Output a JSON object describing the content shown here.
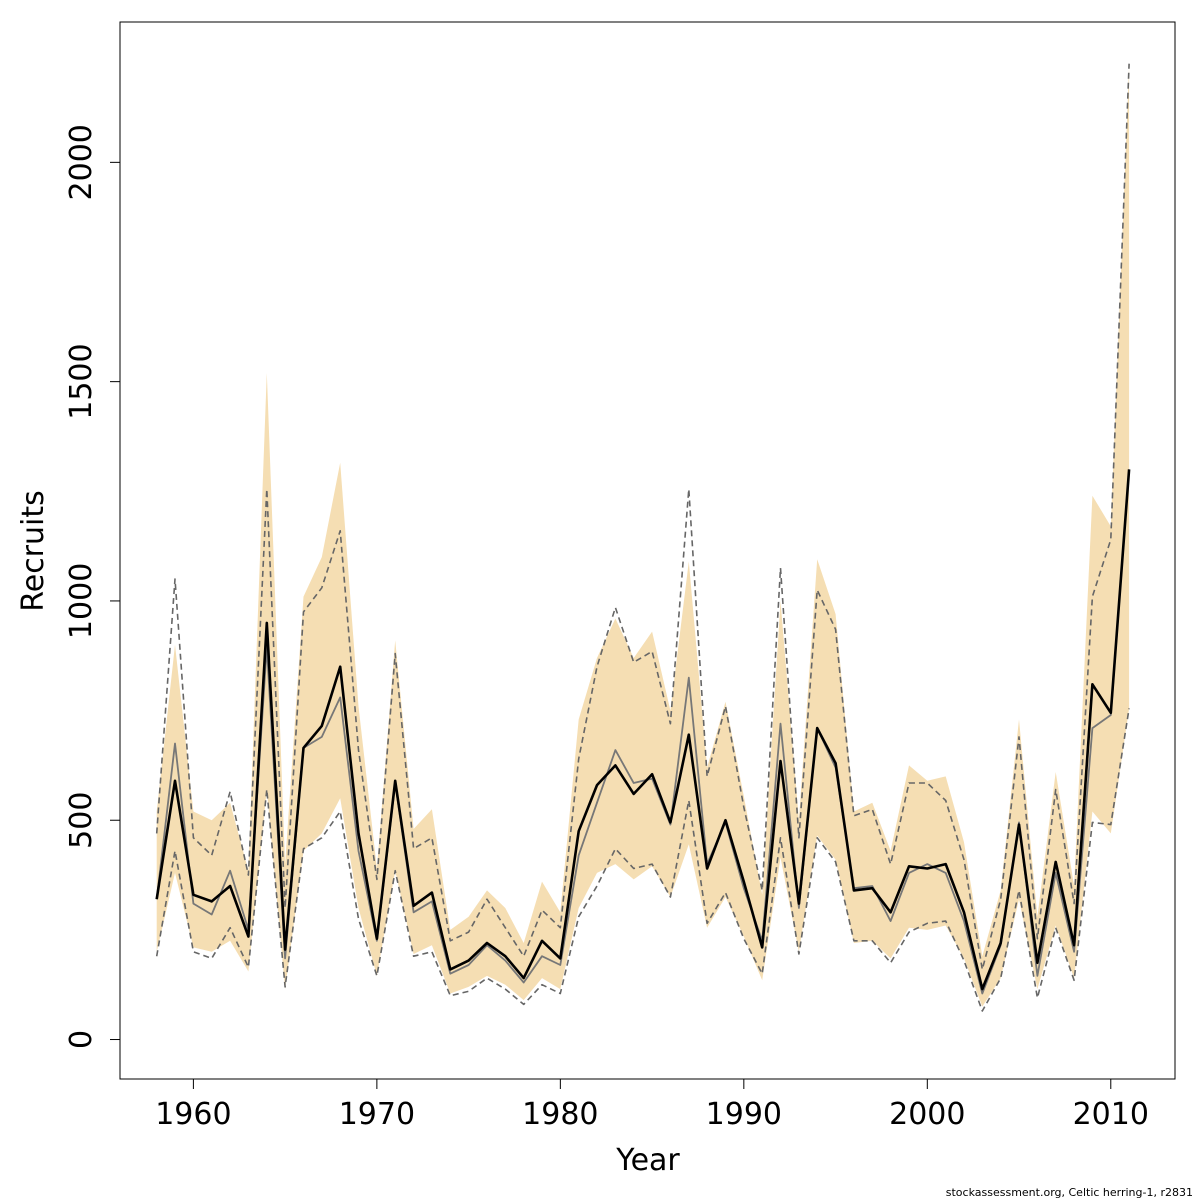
{
  "chart_data": {
    "type": "line",
    "title": "",
    "xlabel": "Year",
    "ylabel": "Recruits",
    "xlim": [
      1956,
      2013.5
    ],
    "ylim": [
      -90,
      2320
    ],
    "xticks": [
      1960,
      1970,
      1980,
      1990,
      2000,
      2010
    ],
    "yticks": [
      0,
      500,
      1000,
      1500,
      2000
    ],
    "grid": false,
    "legend": "none",
    "colors": {
      "band": "#f5deb3",
      "estimate": "#000000",
      "alt_estimate": "#777777",
      "alt_bounds": "#666666",
      "axis": "#000000"
    },
    "x": [
      1958,
      1959,
      1960,
      1961,
      1962,
      1963,
      1964,
      1965,
      1966,
      1967,
      1968,
      1969,
      1970,
      1971,
      1972,
      1973,
      1974,
      1975,
      1976,
      1977,
      1978,
      1979,
      1980,
      1981,
      1982,
      1983,
      1984,
      1985,
      1986,
      1987,
      1988,
      1989,
      1990,
      1991,
      1992,
      1993,
      1994,
      1995,
      1996,
      1997,
      1998,
      1999,
      2000,
      2001,
      2002,
      2003,
      2004,
      2005,
      2006,
      2007,
      2008,
      2009,
      2010,
      2011
    ],
    "series": [
      {
        "role": "estimate",
        "values": [
          320,
          590,
          330,
          315,
          350,
          235,
          950,
          205,
          665,
          715,
          850,
          470,
          230,
          590,
          305,
          335,
          160,
          180,
          220,
          190,
          140,
          225,
          185,
          475,
          580,
          625,
          560,
          605,
          495,
          695,
          390,
          500,
          360,
          210,
          635,
          310,
          710,
          630,
          340,
          345,
          290,
          395,
          390,
          400,
          290,
          115,
          220,
          490,
          175,
          405,
          215,
          810,
          745,
          1300
        ]
      },
      {
        "role": "estimate_upper",
        "values": [
          520,
          900,
          520,
          500,
          540,
          385,
          1520,
          400,
          1010,
          1100,
          1315,
          760,
          390,
          910,
          480,
          525,
          250,
          280,
          340,
          300,
          220,
          360,
          290,
          730,
          870,
          960,
          870,
          930,
          750,
          1090,
          620,
          770,
          555,
          330,
          1000,
          500,
          1095,
          970,
          520,
          540,
          430,
          625,
          590,
          600,
          450,
          190,
          340,
          730,
          280,
          610,
          350,
          1240,
          1170,
          2220
        ]
      },
      {
        "role": "estimate_lower",
        "values": [
          200,
          380,
          210,
          200,
          225,
          155,
          570,
          115,
          430,
          470,
          550,
          300,
          145,
          385,
          195,
          215,
          105,
          120,
          145,
          125,
          90,
          140,
          115,
          300,
          380,
          400,
          365,
          395,
          325,
          445,
          255,
          325,
          235,
          135,
          415,
          200,
          465,
          410,
          220,
          225,
          185,
          255,
          250,
          260,
          185,
          75,
          140,
          320,
          115,
          260,
          140,
          520,
          470,
          755
        ]
      },
      {
        "role": "alt_estimate",
        "values": [
          320,
          675,
          310,
          285,
          385,
          250,
          895,
          185,
          665,
          690,
          780,
          430,
          225,
          585,
          290,
          315,
          150,
          170,
          215,
          180,
          130,
          190,
          170,
          420,
          540,
          660,
          585,
          595,
          490,
          825,
          400,
          495,
          345,
          225,
          720,
          300,
          710,
          620,
          345,
          350,
          270,
          380,
          400,
          380,
          270,
          105,
          215,
          495,
          145,
          380,
          200,
          710,
          740,
          1300
        ]
      },
      {
        "role": "alt_upper",
        "values": [
          470,
          1050,
          460,
          420,
          565,
          375,
          1255,
          300,
          975,
          1030,
          1160,
          660,
          365,
          880,
          435,
          460,
          225,
          245,
          320,
          255,
          190,
          295,
          255,
          640,
          850,
          985,
          860,
          885,
          720,
          1255,
          600,
          760,
          530,
          340,
          1075,
          460,
          1025,
          935,
          510,
          525,
          400,
          585,
          585,
          545,
          410,
          160,
          320,
          690,
          230,
          570,
          310,
          1010,
          1140,
          2225
        ]
      },
      {
        "role": "alt_lower",
        "values": [
          190,
          430,
          200,
          185,
          255,
          165,
          570,
          120,
          435,
          460,
          520,
          275,
          145,
          385,
          190,
          200,
          100,
          110,
          140,
          115,
          80,
          125,
          105,
          280,
          350,
          435,
          390,
          400,
          325,
          545,
          265,
          335,
          230,
          150,
          460,
          195,
          460,
          405,
          225,
          225,
          175,
          245,
          265,
          270,
          180,
          65,
          140,
          340,
          95,
          255,
          135,
          495,
          490,
          755
        ]
      }
    ]
  },
  "credit": "stockassessment.org, Celtic  herring-1, r2831"
}
